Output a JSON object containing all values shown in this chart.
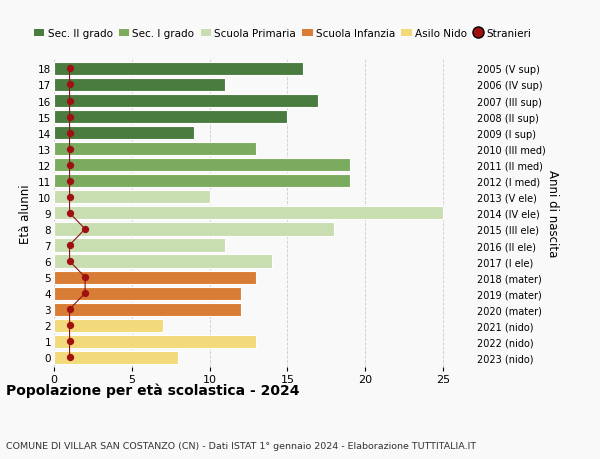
{
  "ages": [
    18,
    17,
    16,
    15,
    14,
    13,
    12,
    11,
    10,
    9,
    8,
    7,
    6,
    5,
    4,
    3,
    2,
    1,
    0
  ],
  "right_labels": [
    "2005 (V sup)",
    "2006 (IV sup)",
    "2007 (III sup)",
    "2008 (II sup)",
    "2009 (I sup)",
    "2010 (III med)",
    "2011 (II med)",
    "2012 (I med)",
    "2013 (V ele)",
    "2014 (IV ele)",
    "2015 (III ele)",
    "2016 (II ele)",
    "2017 (I ele)",
    "2018 (mater)",
    "2019 (mater)",
    "2020 (mater)",
    "2021 (nido)",
    "2022 (nido)",
    "2023 (nido)"
  ],
  "bar_values": [
    16,
    11,
    17,
    15,
    9,
    13,
    19,
    19,
    10,
    25,
    18,
    11,
    14,
    13,
    12,
    12,
    7,
    13,
    8
  ],
  "bar_colors": [
    "#4a7c3f",
    "#4a7c3f",
    "#4a7c3f",
    "#4a7c3f",
    "#4a7c3f",
    "#7aab5e",
    "#7aab5e",
    "#7aab5e",
    "#c8ddb0",
    "#c8ddb0",
    "#c8ddb0",
    "#c8ddb0",
    "#c8ddb0",
    "#d97c35",
    "#d97c35",
    "#d97c35",
    "#f2d97a",
    "#f2d97a",
    "#f2d97a"
  ],
  "stranieri_values": [
    1,
    1,
    1,
    1,
    1,
    1,
    1,
    1,
    1,
    1,
    2,
    1,
    1,
    2,
    2,
    1,
    1,
    1,
    1
  ],
  "title": "Popolazione per età scolastica - 2024",
  "subtitle": "COMUNE DI VILLAR SAN COSTANZO (CN) - Dati ISTAT 1° gennaio 2024 - Elaborazione TUTTITALIA.IT",
  "ylabel": "Età alunni",
  "right_ylabel": "Anni di nascita",
  "xlim": [
    0,
    27
  ],
  "legend_labels": [
    "Sec. II grado",
    "Sec. I grado",
    "Scuola Primaria",
    "Scuola Infanzia",
    "Asilo Nido",
    "Stranieri"
  ],
  "legend_colors": [
    "#4a7c3f",
    "#7aab5e",
    "#c8ddb0",
    "#d97c35",
    "#f2d97a",
    "#a01010"
  ],
  "bg_color": "#f9f9f9",
  "grid_color": "#cccccc"
}
